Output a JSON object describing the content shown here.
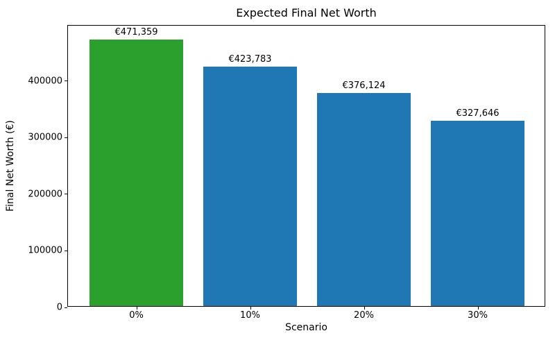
{
  "chart_data": {
    "type": "bar",
    "title": "Expected Final Net Worth",
    "xlabel": "Scenario",
    "ylabel": "Final Net Worth (€)",
    "categories": [
      "0%",
      "10%",
      "20%",
      "30%"
    ],
    "values": [
      471359,
      423783,
      376124,
      327646
    ],
    "bar_labels": [
      "€471,359",
      "€423,783",
      "€376,124",
      "€327,646"
    ],
    "bar_colors": [
      "#2ca02c",
      "#1f77b4",
      "#1f77b4",
      "#1f77b4"
    ],
    "yticks": [
      0,
      100000,
      200000,
      300000,
      400000
    ],
    "ytick_labels": [
      "0",
      "100000",
      "200000",
      "300000",
      "400000"
    ],
    "ylim": [
      0,
      498000
    ],
    "grid": false,
    "legend_position": "none",
    "highlight_color": "#2ca02c",
    "default_color": "#1f77b4",
    "axis_color": "#000000",
    "background_color": "#ffffff"
  }
}
